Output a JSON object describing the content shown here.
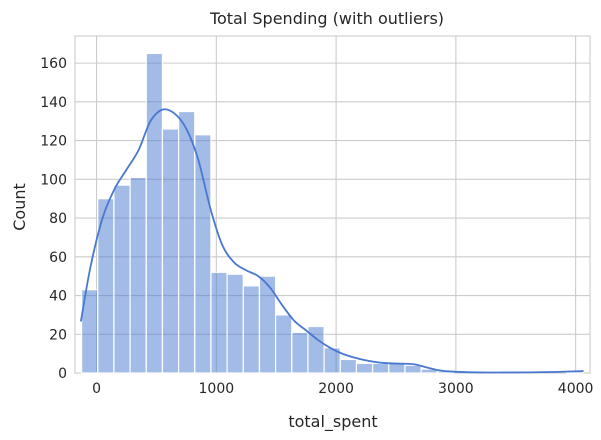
{
  "chart_data": {
    "type": "bar",
    "title": "Total Spending (with outliers)",
    "xlabel": "total_spent",
    "ylabel": "Count",
    "xlim": [
      -180,
      4120
    ],
    "ylim": [
      0,
      174
    ],
    "grid": true,
    "xticks": [
      {
        "value": 0,
        "label": "0"
      },
      {
        "value": 1000,
        "label": "1000"
      },
      {
        "value": 2000,
        "label": "2000"
      },
      {
        "value": 3000,
        "label": "3000"
      },
      {
        "value": 4000,
        "label": "4000"
      }
    ],
    "yticks": [
      {
        "value": 0,
        "label": "0"
      },
      {
        "value": 20,
        "label": "20"
      },
      {
        "value": 40,
        "label": "40"
      },
      {
        "value": 60,
        "label": "60"
      },
      {
        "value": 80,
        "label": "80"
      },
      {
        "value": 100,
        "label": "100"
      },
      {
        "value": 120,
        "label": "120"
      },
      {
        "value": 140,
        "label": "140"
      },
      {
        "value": 160,
        "label": "160"
      }
    ],
    "bins": [
      {
        "x0": -125,
        "x1": 10,
        "count": 43
      },
      {
        "x0": 10,
        "x1": 145,
        "count": 90
      },
      {
        "x0": 145,
        "x1": 280,
        "count": 97
      },
      {
        "x0": 280,
        "x1": 415,
        "count": 101
      },
      {
        "x0": 415,
        "x1": 550,
        "count": 165
      },
      {
        "x0": 550,
        "x1": 685,
        "count": 126
      },
      {
        "x0": 685,
        "x1": 820,
        "count": 135
      },
      {
        "x0": 820,
        "x1": 955,
        "count": 123
      },
      {
        "x0": 955,
        "x1": 1090,
        "count": 52
      },
      {
        "x0": 1090,
        "x1": 1225,
        "count": 51
      },
      {
        "x0": 1225,
        "x1": 1360,
        "count": 45
      },
      {
        "x0": 1360,
        "x1": 1495,
        "count": 50
      },
      {
        "x0": 1495,
        "x1": 1630,
        "count": 30
      },
      {
        "x0": 1630,
        "x1": 1765,
        "count": 21
      },
      {
        "x0": 1765,
        "x1": 1900,
        "count": 24
      },
      {
        "x0": 1900,
        "x1": 2035,
        "count": 13
      },
      {
        "x0": 2035,
        "x1": 2170,
        "count": 7
      },
      {
        "x0": 2170,
        "x1": 2305,
        "count": 5
      },
      {
        "x0": 2305,
        "x1": 2440,
        "count": 5
      },
      {
        "x0": 2440,
        "x1": 2575,
        "count": 5
      },
      {
        "x0": 2575,
        "x1": 2710,
        "count": 4
      },
      {
        "x0": 2710,
        "x1": 2845,
        "count": 2
      },
      {
        "x0": 2845,
        "x1": 2980,
        "count": 1
      },
      {
        "x0": 2980,
        "x1": 3115,
        "count": 0
      },
      {
        "x0": 3115,
        "x1": 3250,
        "count": 0
      },
      {
        "x0": 3250,
        "x1": 3385,
        "count": 0
      },
      {
        "x0": 3385,
        "x1": 3520,
        "count": 0
      },
      {
        "x0": 3520,
        "x1": 3655,
        "count": 0
      },
      {
        "x0": 3655,
        "x1": 3790,
        "count": 0
      },
      {
        "x0": 3790,
        "x1": 3925,
        "count": 0
      },
      {
        "x0": 3925,
        "x1": 4060,
        "count": 1
      }
    ],
    "kde": {
      "x": [
        -130,
        -50,
        50,
        150,
        250,
        350,
        450,
        550,
        650,
        750,
        850,
        950,
        1050,
        1150,
        1250,
        1350,
        1450,
        1550,
        1650,
        1750,
        1850,
        1950,
        2050,
        2150,
        2250,
        2350,
        2450,
        2550,
        2650,
        2750,
        2850,
        2950,
        3200,
        3500,
        3800,
        4060
      ],
      "y": [
        27,
        55,
        80,
        95,
        105,
        115,
        130,
        136,
        134,
        126,
        110,
        85,
        66,
        57,
        53,
        50,
        44,
        35,
        27,
        22,
        17,
        13,
        10,
        8,
        6.5,
        5.5,
        5,
        4.8,
        4.5,
        3,
        1.5,
        0.8,
        0.3,
        0.3,
        0.5,
        1
      ]
    },
    "colors": {
      "bar": "#4878cf",
      "bar_opacity": 0.5,
      "kde": "#4878cf",
      "grid": "#cccccc",
      "text": "#262626"
    }
  }
}
